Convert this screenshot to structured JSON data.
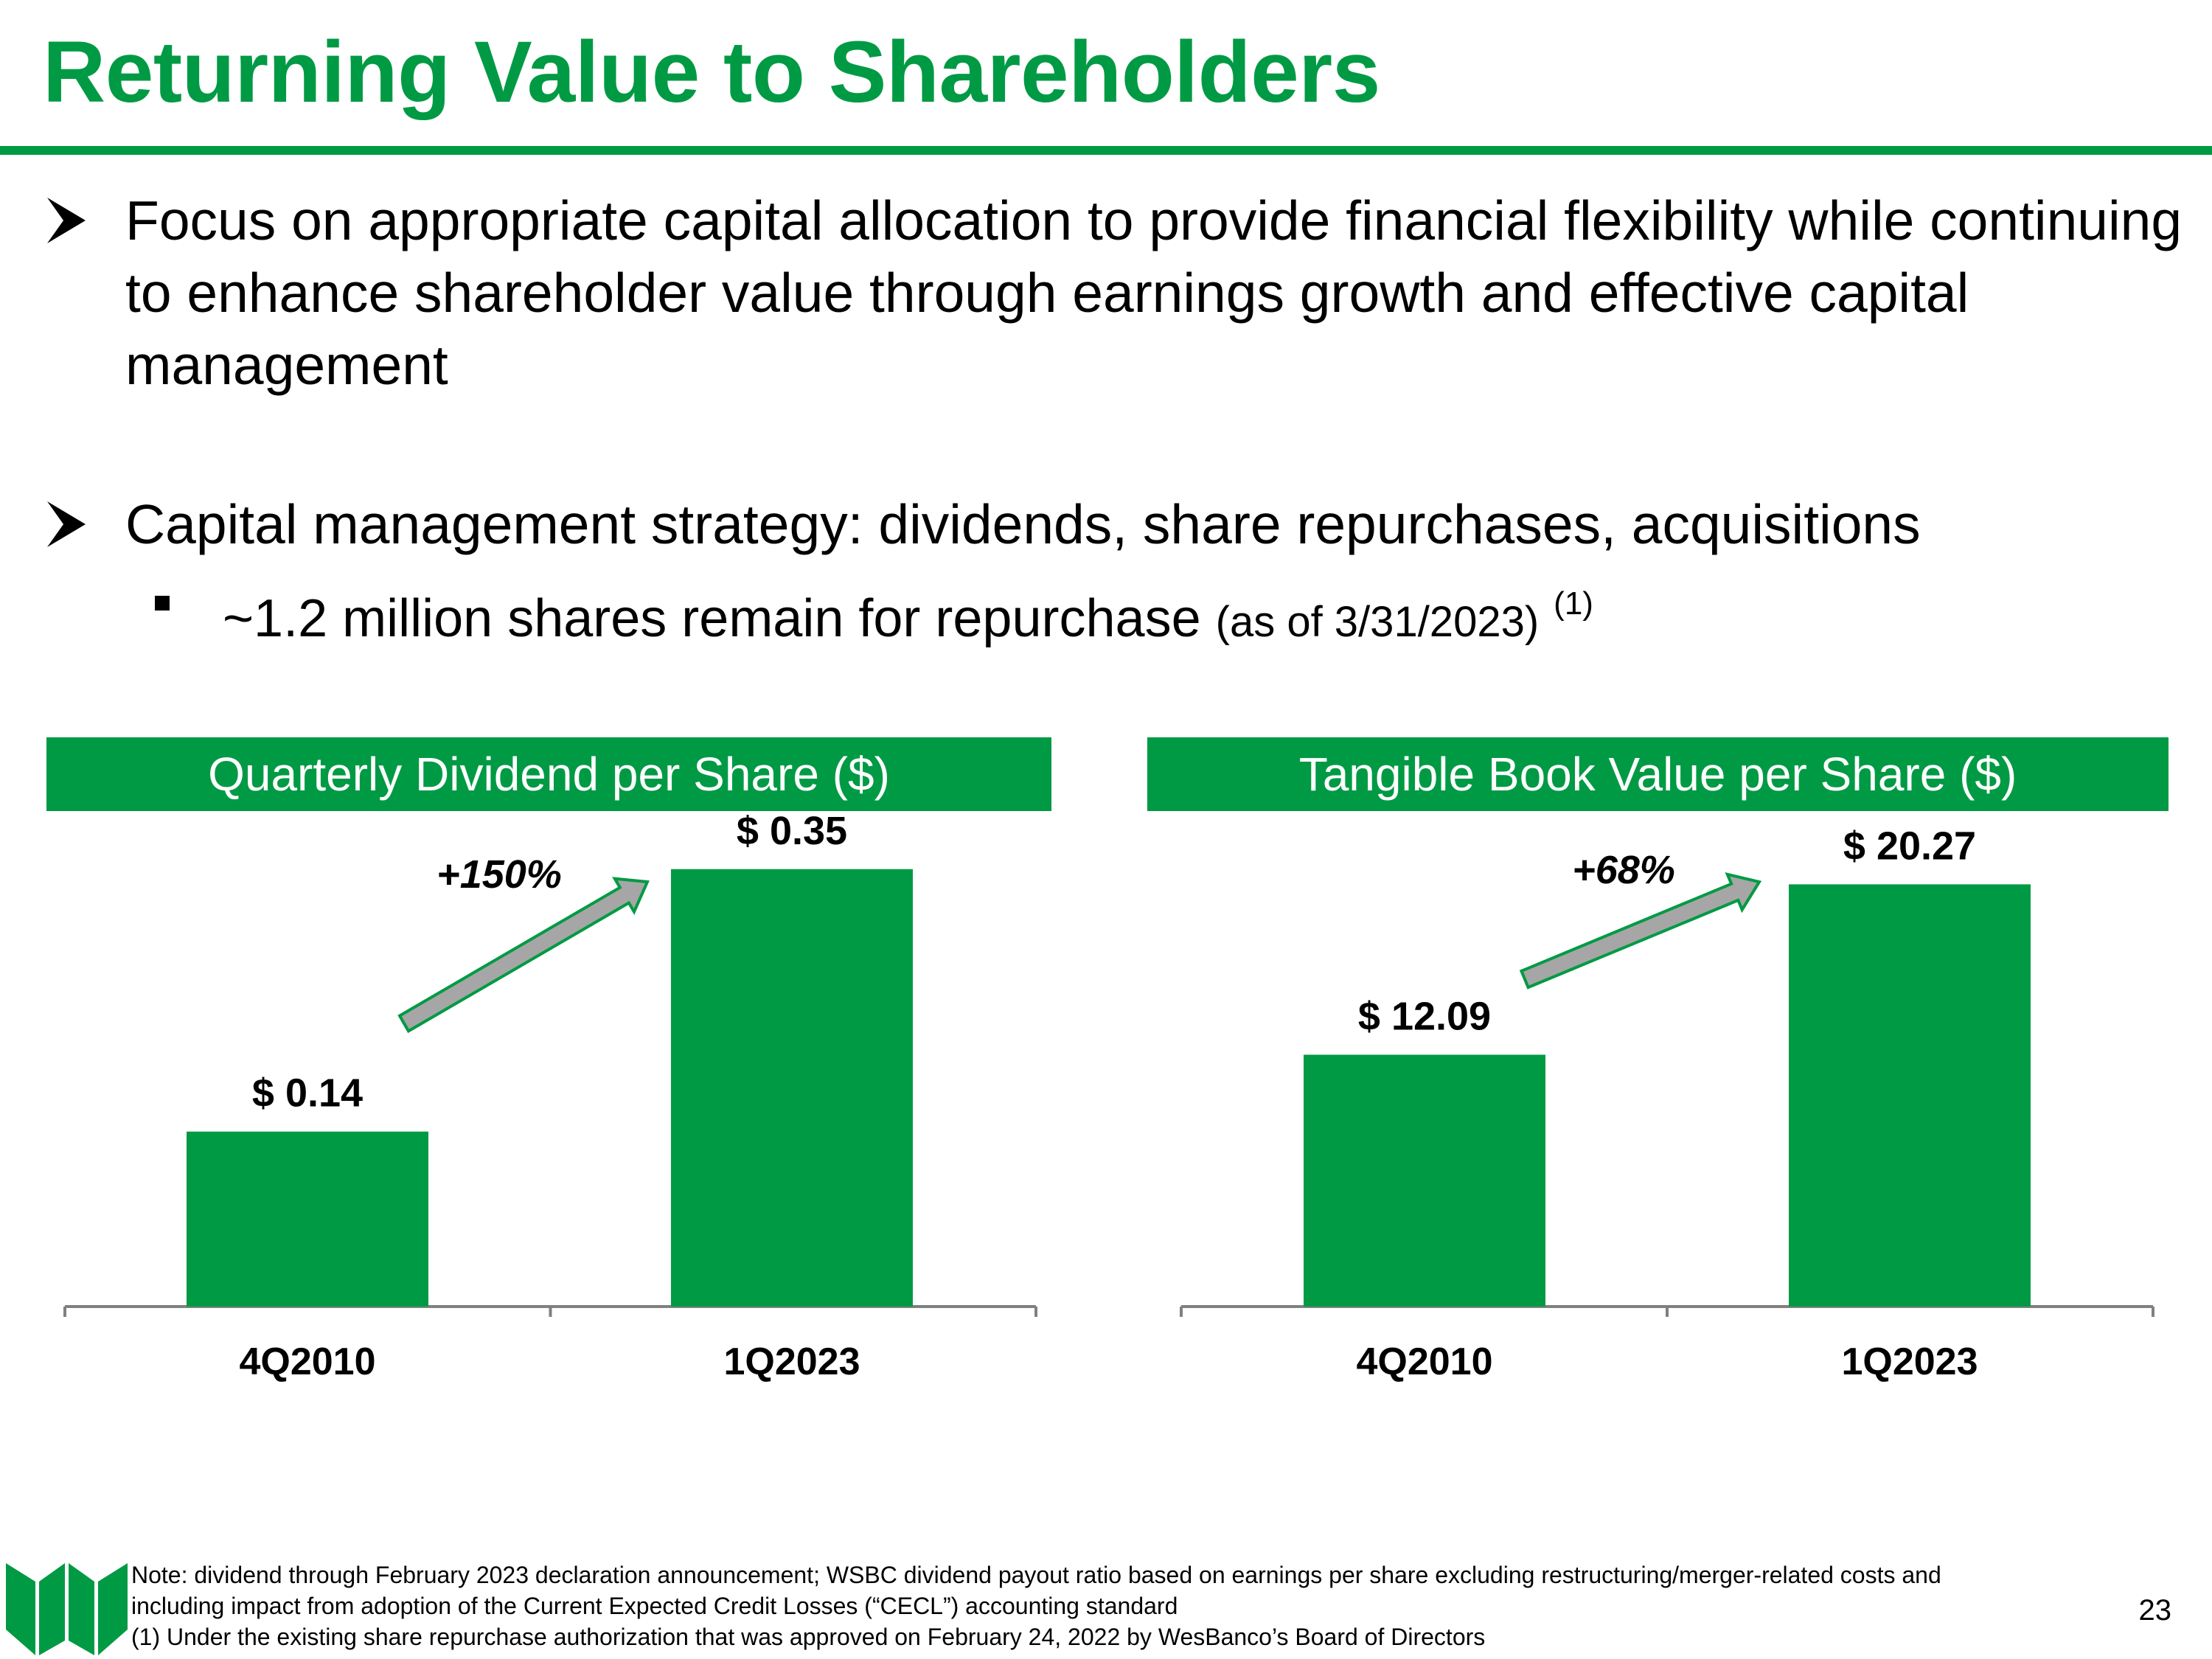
{
  "slide": {
    "title": "Returning Value to Shareholders",
    "page_number": "23",
    "accent_color": "#009a44"
  },
  "bullets": [
    {
      "icon": "arrow-bullet-icon",
      "text": "Focus on appropriate capital allocation to provide financial flexibility while continuing to enhance shareholder value through earnings growth and effective capital management"
    },
    {
      "icon": "arrow-bullet-icon",
      "text": "Capital management strategy:  dividends, share repurchases, acquisitions"
    }
  ],
  "sub_bullet": {
    "icon": "square-bullet-icon",
    "text": "~1.2 million shares remain for repurchase",
    "paren": "(as of 3/31/2023)",
    "sup": "(1)"
  },
  "chart_data": [
    {
      "type": "bar",
      "title": "Quarterly Dividend per Share ($)",
      "categories": [
        "4Q2010",
        "1Q2023"
      ],
      "values": [
        0.14,
        0.35
      ],
      "labels": [
        "$ 0.14",
        "$ 0.35"
      ],
      "ylim": [
        0,
        0.4
      ],
      "growth_label": "+150%",
      "xlabel": "",
      "ylabel": "",
      "bar_color": "#009a44",
      "arrow_color": "#a6a6a6"
    },
    {
      "type": "bar",
      "title": "Tangible Book Value per Share ($)",
      "categories": [
        "4Q2010",
        "1Q2023"
      ],
      "values": [
        12.09,
        20.27
      ],
      "labels": [
        "$ 12.09",
        "$ 20.27"
      ],
      "ylim": [
        0,
        24
      ],
      "growth_label": "+68%",
      "xlabel": "",
      "ylabel": "",
      "bar_color": "#009a44",
      "arrow_color": "#a6a6a6"
    }
  ],
  "footnotes": {
    "note_line1": "Note:  dividend through February 2023 declaration announcement; WSBC dividend payout ratio based on earnings per share excluding restructuring/merger-related costs and",
    "note_line2": "including impact from adoption of the Current Expected Credit Losses (“CECL”) accounting standard",
    "note_line3": "(1) Under the existing share repurchase authorization that was approved on February 24, 2022 by WesBanco’s Board of Directors"
  }
}
